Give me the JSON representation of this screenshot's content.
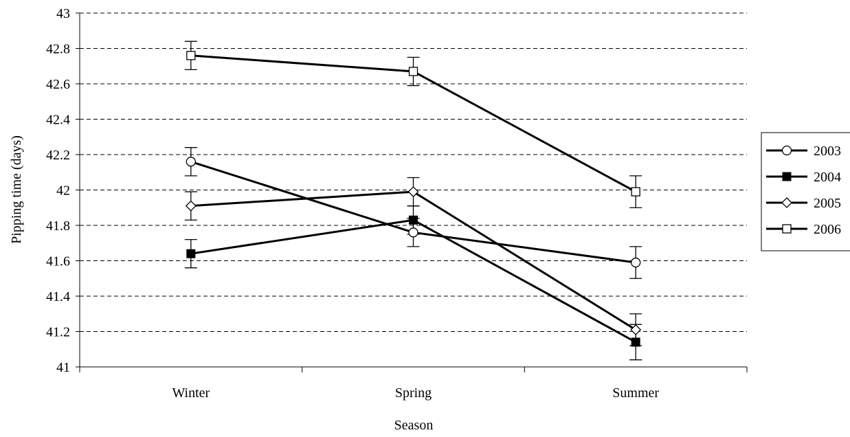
{
  "chart_data": {
    "type": "line",
    "title": "",
    "xlabel": "Season",
    "ylabel": "Pipping time (days)",
    "categories": [
      "Winter",
      "Spring",
      "Summer"
    ],
    "ylim": [
      41,
      43
    ],
    "yticks": [
      41,
      41.2,
      41.4,
      41.6,
      41.8,
      42,
      42.2,
      42.4,
      42.6,
      42.8,
      43
    ],
    "ytick_labels": [
      "41",
      "41.2",
      "41.4",
      "41.6",
      "41.8",
      "42",
      "42.2",
      "42.4",
      "42.6",
      "42.8",
      "43"
    ],
    "grid": "horizontal dashed",
    "legend_position": "right",
    "series": [
      {
        "name": "2003",
        "marker": "circle-open",
        "values": [
          42.16,
          41.76,
          41.59
        ],
        "errors": [
          0.08,
          0.08,
          0.09
        ]
      },
      {
        "name": "2004",
        "marker": "square-filled",
        "values": [
          41.64,
          41.83,
          41.14
        ],
        "errors": [
          0.08,
          0.08,
          0.1
        ]
      },
      {
        "name": "2005",
        "marker": "diamond-open",
        "values": [
          41.91,
          41.99,
          41.21
        ],
        "errors": [
          0.08,
          0.08,
          0.09
        ]
      },
      {
        "name": "2006",
        "marker": "square-open",
        "values": [
          42.76,
          42.67,
          41.99
        ],
        "errors": [
          0.08,
          0.08,
          0.09
        ]
      }
    ],
    "colors": {
      "line": "#000000",
      "grid": "#000000",
      "background": "#ffffff"
    }
  }
}
